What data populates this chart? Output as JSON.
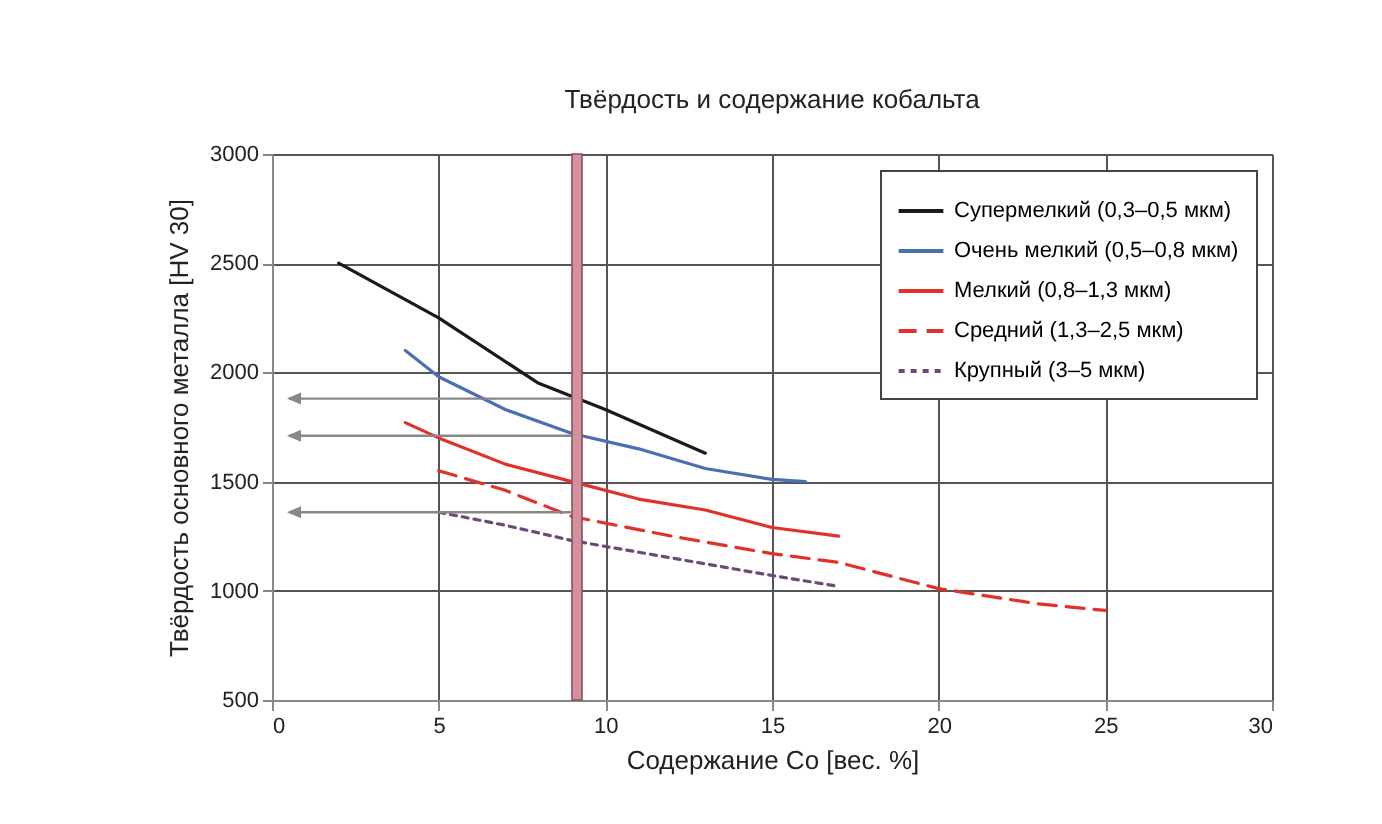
{
  "chart_data": {
    "type": "line",
    "title": "Твёрдость и содержание кобальта",
    "xlabel": "Содержание Co [вес. %]",
    "ylabel": "Твёрдость основного металла [HV 30]",
    "xlim": [
      0,
      30
    ],
    "xticks": [
      0,
      5,
      10,
      15,
      20,
      25,
      30
    ],
    "ylim": [
      500,
      3000
    ],
    "yticks": [
      500,
      1000,
      1500,
      2000,
      2500,
      3000
    ],
    "grid": true,
    "legend": "top right",
    "series": [
      {
        "name": "Супермелкий (0,3–0,5 мкм)",
        "color": "#1a1a1a",
        "line_style": "solid",
        "x": [
          2,
          5,
          8,
          10,
          13
        ],
        "values": [
          2500,
          2250,
          1950,
          1830,
          1630
        ]
      },
      {
        "name": "Очень мелкий (0,5–0,8 мкм)",
        "color": "#4a6fb5",
        "line_style": "solid",
        "x": [
          4,
          5,
          7,
          9,
          11,
          13,
          15,
          16
        ],
        "values": [
          2100,
          1980,
          1830,
          1720,
          1650,
          1560,
          1510,
          1500
        ]
      },
      {
        "name": "Мелкий (0,8–1,3 мкм)",
        "color": "#e0322b",
        "line_style": "solid",
        "x": [
          4,
          5,
          7,
          9,
          11,
          13,
          15,
          17
        ],
        "values": [
          1770,
          1700,
          1580,
          1500,
          1420,
          1370,
          1290,
          1250
        ]
      },
      {
        "name": "Средний (1,3–2,5 мкм)",
        "color": "#e0322b",
        "line_style": "dashed",
        "x": [
          5,
          7,
          9,
          12,
          15,
          17,
          20,
          23,
          25
        ],
        "values": [
          1550,
          1460,
          1340,
          1250,
          1170,
          1130,
          1010,
          940,
          910
        ]
      },
      {
        "name": "Крупный (3–5 мкм)",
        "color": "#6a4a7a",
        "line_style": "dotted",
        "x": [
          5,
          7,
          9,
          12,
          15,
          17
        ],
        "values": [
          1360,
          1300,
          1230,
          1150,
          1070,
          1020
        ]
      }
    ],
    "bands": [
      {
        "axis": "x",
        "from": 9,
        "to": 9.3,
        "color": "#d4909c"
      }
    ],
    "ref_lines": [
      {
        "axis": "y",
        "value": 1880,
        "color": "#888888"
      },
      {
        "axis": "y",
        "value": 1710,
        "color": "#888888"
      },
      {
        "axis": "y",
        "value": 1360,
        "color": "#888888"
      }
    ]
  }
}
